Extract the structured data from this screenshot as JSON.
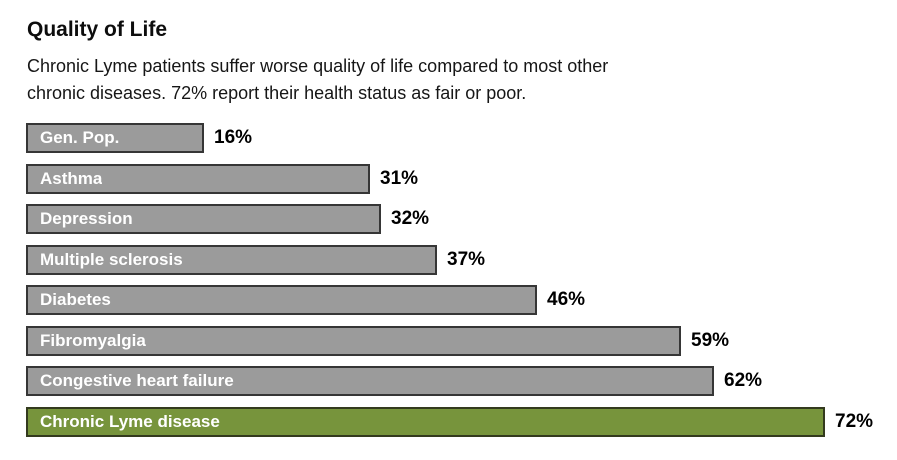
{
  "chart_data": {
    "type": "bar",
    "orientation": "horizontal",
    "title": "Quality of Life",
    "subtitle": "Chronic Lyme patients suffer worse quality of life compared to most other chronic diseases. 72% report their health status as fair or poor.",
    "subtitle_lines": [
      "Chronic Lyme patients suffer worse quality of life compared to most other",
      "chronic diseases. 72% report their health status as fair or poor."
    ],
    "categories": [
      "Gen. Pop.",
      "Asthma",
      "Depression",
      "Multiple sclerosis",
      "Diabetes",
      "Fibromyalgia",
      "Congestive heart failure",
      "Chronic Lyme disease"
    ],
    "values": [
      16,
      31,
      32,
      37,
      46,
      59,
      62,
      72
    ],
    "value_labels": [
      "16%",
      "31%",
      "32%",
      "37%",
      "46%",
      "59%",
      "62%",
      "72%"
    ],
    "value_suffix": "%",
    "highlight_index": 7,
    "highlight_category": "Chronic Lyme disease",
    "axes_visible": false,
    "grid": false,
    "legend": false,
    "xlim": [
      0,
      75
    ],
    "colors": {
      "bar_fill": "#9b9b9b",
      "bar_border": "#363636",
      "highlight_fill": "#77943c",
      "highlight_border": "#333a1e",
      "category_label_text": "#ffffff",
      "value_label_text": "#000000",
      "title_text": "#0d0d0d",
      "background": "#ffffff"
    }
  }
}
